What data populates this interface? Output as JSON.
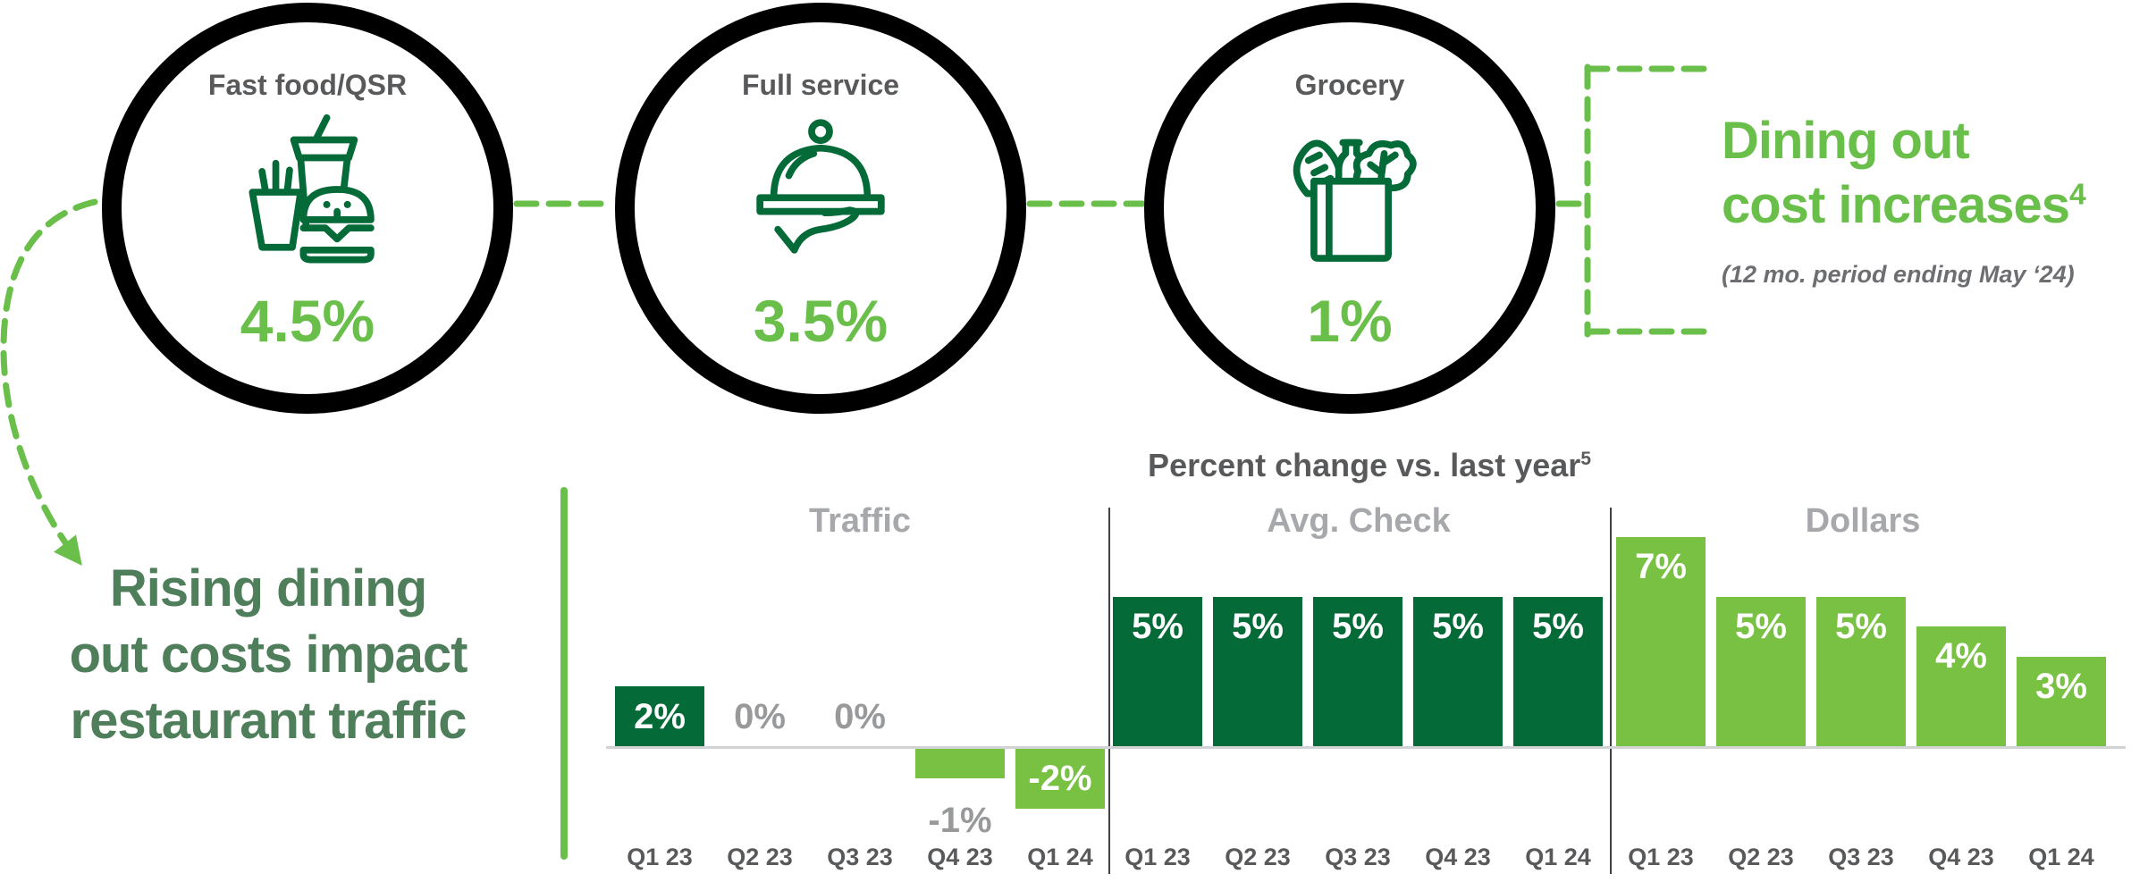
{
  "top_circles": [
    {
      "label": "Fast food/QSR",
      "value": "4.5%"
    },
    {
      "label": "Full service",
      "value": "3.5%"
    },
    {
      "label": "Grocery",
      "value": "1%"
    }
  ],
  "callout": {
    "line1": "Dining out",
    "line2": "cost increases",
    "footnote": "4",
    "subtitle": "(12 mo. period ending May ‘24)"
  },
  "headline": {
    "line1": "Rising dining",
    "line2": "out costs impact",
    "line3": "restaurant traffic"
  },
  "chart_data": {
    "type": "bar",
    "title": "Percent change vs. last year",
    "title_footnote": "5",
    "unit": "%",
    "baseline": 0,
    "grid": false,
    "legend": "none",
    "ylim": [
      -2,
      7
    ],
    "categories": [
      "Q1 23",
      "Q2 23",
      "Q3 23",
      "Q4 23",
      "Q1 24"
    ],
    "series": [
      {
        "name": "Traffic",
        "values": [
          2,
          0,
          0,
          -1,
          -2
        ],
        "labels": [
          "2%",
          "0%",
          "0%",
          "-1%",
          "-2%"
        ],
        "bar_colors": [
          "dark",
          null,
          null,
          "light",
          "light"
        ],
        "label_styles": [
          "inside",
          "gray",
          "gray",
          "gray-below",
          "inside"
        ]
      },
      {
        "name": "Avg. Check",
        "values": [
          5,
          5,
          5,
          5,
          5
        ],
        "labels": [
          "5%",
          "5%",
          "5%",
          "5%",
          "5%"
        ],
        "bar_colors": [
          "dark",
          "dark",
          "dark",
          "dark",
          "dark"
        ],
        "label_styles": [
          "inside",
          "inside",
          "inside",
          "inside",
          "inside"
        ]
      },
      {
        "name": "Dollars",
        "values": [
          7,
          5,
          5,
          4,
          3
        ],
        "labels": [
          "7%",
          "5%",
          "5%",
          "4%",
          "3%"
        ],
        "bar_colors": [
          "light",
          "light",
          "light",
          "light",
          "light"
        ],
        "label_styles": [
          "inside",
          "inside",
          "inside",
          "inside",
          "inside"
        ]
      }
    ]
  },
  "colors": {
    "dark_green": "#046a38",
    "light_green_bar": "#79c143",
    "light_green_accent": "#6abf4b",
    "headline_green": "#4f7e5b",
    "dark_gray": "#58595b",
    "mid_gray": "#6d6e71",
    "light_gray": "#a6a8ab",
    "black": "#000000"
  }
}
